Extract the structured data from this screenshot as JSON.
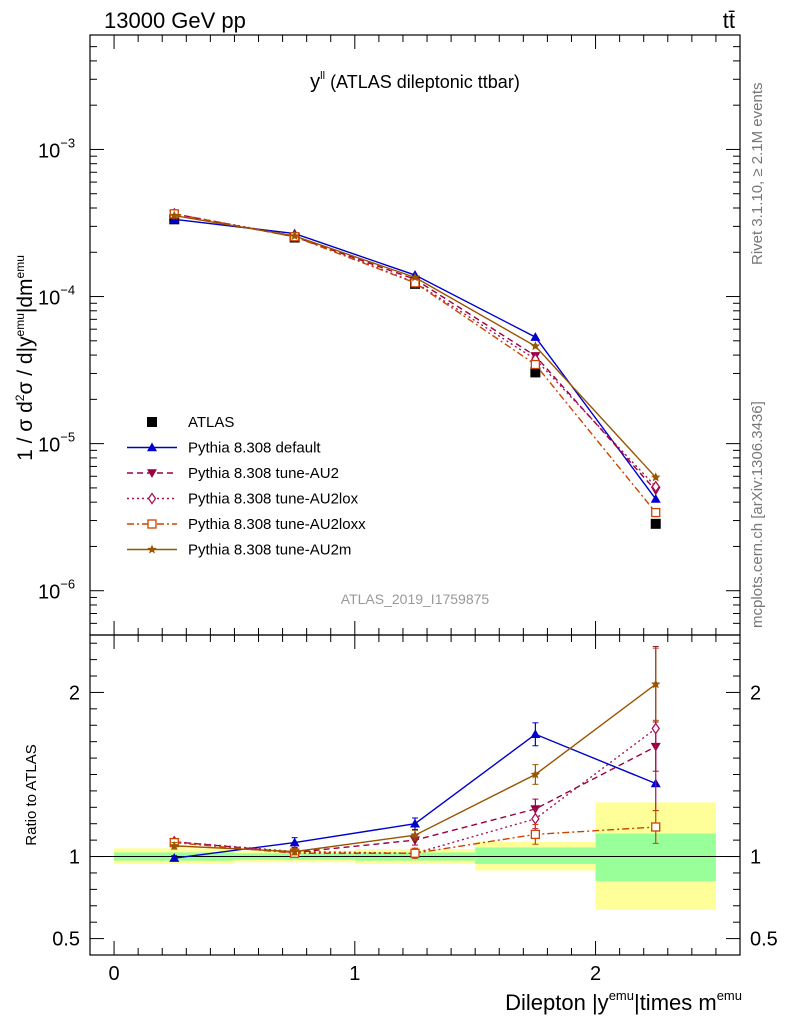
{
  "header": {
    "energy_label": "13000 GeV pp",
    "process_label": "tt̄",
    "side_label_top": "Rivet 3.1.10, ≥ 2.1M events",
    "side_label_bottom": "mcplots.cern.ch [arXiv:1306.3436]"
  },
  "chart_data": [
    {
      "type": "line",
      "panel": "main",
      "title": "y^ll (ATLAS dileptonic ttbar)",
      "title_main": "y",
      "title_sup": "ll",
      "title_rest": " (ATLAS dileptonic ttbar)",
      "ylabel": "1 / σ d²σ / d|y^emu|dm^emu",
      "watermark": "ATLAS_2019_I1759875",
      "yscale": "log",
      "ylim": [
        5e-07,
        0.006
      ],
      "xlim": [
        -0.1,
        2.6
      ],
      "y_ticks": [
        {
          "value": 1e-06,
          "label": "10",
          "exp": "−6"
        },
        {
          "value": 1e-05,
          "label": "10",
          "exp": "−5"
        },
        {
          "value": 0.0001,
          "label": "10",
          "exp": "−4"
        },
        {
          "value": 0.001,
          "label": "10",
          "exp": "−3"
        }
      ],
      "legend_position": "lower-left",
      "x": [
        0.25,
        0.75,
        1.25,
        1.75,
        2.25
      ],
      "series": [
        {
          "name": "ATLAS",
          "style": "data",
          "color": "#000000",
          "marker": "square-filled",
          "values": [
            0.000335,
            0.000252,
            0.000122,
            3.05e-05,
            2.85e-06
          ]
        },
        {
          "name": "Pythia 8.308 default",
          "style": "solid",
          "color": "#0000cc",
          "marker": "triangle-up",
          "values": [
            0.000335,
            0.000268,
            0.00014,
            5.3e-05,
            4.2e-06
          ]
        },
        {
          "name": "Pythia 8.308 tune-AU2",
          "style": "dashed",
          "color": "#990044",
          "marker": "triangle-down",
          "values": [
            0.000365,
            0.000255,
            0.000131,
            3.95e-05,
            4.8e-06
          ]
        },
        {
          "name": "Pythia 8.308 tune-AU2lox",
          "style": "dotted",
          "color": "#aa1155",
          "marker": "diamond-open",
          "values": [
            0.000365,
            0.000258,
            0.000125,
            3.75e-05,
            5.1e-06
          ]
        },
        {
          "name": "Pythia 8.308 tune-AU2loxx",
          "style": "dashdot",
          "color": "#cc4400",
          "marker": "square-open",
          "values": [
            0.000365,
            0.000255,
            0.000124,
            3.45e-05,
            3.4e-06
          ]
        },
        {
          "name": "Pythia 8.308 tune-AU2m",
          "style": "solid",
          "color": "#995500",
          "marker": "star",
          "values": [
            0.000355,
            0.000258,
            0.000135,
            4.6e-05,
            5.9e-06
          ]
        }
      ]
    },
    {
      "type": "line",
      "panel": "ratio",
      "ylabel": "Ratio to ATLAS",
      "xlabel": "Dilepton |y^emu|times m^emu",
      "xlabel_parts": [
        "Dilepton |y",
        "emu",
        "|times m",
        "emu"
      ],
      "ylim": [
        0.4,
        2.35
      ],
      "xlim": [
        -0.1,
        2.6
      ],
      "y_ticks": [
        {
          "value": 0.5,
          "label": "0.5"
        },
        {
          "value": 1,
          "label": "1"
        },
        {
          "value": 2,
          "label": "2"
        }
      ],
      "x_ticks": [
        {
          "value": 0,
          "label": "0"
        },
        {
          "value": 1,
          "label": "1"
        },
        {
          "value": 2,
          "label": "2"
        }
      ],
      "bands": [
        {
          "x0": 0.0,
          "x1": 0.5,
          "inner": [
            0.975,
            1.025
          ],
          "outer": [
            0.955,
            1.05
          ]
        },
        {
          "x0": 0.5,
          "x1": 1.0,
          "inner": [
            0.98,
            1.02
          ],
          "outer": [
            0.965,
            1.035
          ]
        },
        {
          "x0": 1.0,
          "x1": 1.5,
          "inner": [
            0.975,
            1.025
          ],
          "outer": [
            0.955,
            1.045
          ]
        },
        {
          "x0": 1.5,
          "x1": 2.0,
          "inner": [
            0.955,
            1.055
          ],
          "outer": [
            0.915,
            1.09
          ]
        },
        {
          "x0": 2.0,
          "x1": 2.5,
          "inner": [
            0.85,
            1.14
          ],
          "outer": [
            0.675,
            1.33
          ]
        }
      ],
      "x": [
        0.25,
        0.75,
        1.25,
        1.75,
        2.25
      ],
      "series": [
        {
          "name": "Pythia 8.308 default",
          "style": "solid",
          "color": "#0000cc",
          "marker": "triangle-up",
          "values": [
            0.99,
            1.085,
            1.2,
            1.745,
            1.445
          ],
          "errors": [
            0.015,
            0.03,
            0.035,
            0.07,
            0.0
          ]
        },
        {
          "name": "Pythia 8.308 tune-AU2",
          "style": "dashed",
          "color": "#990044",
          "marker": "triangle-down",
          "values": [
            1.09,
            1.025,
            1.1,
            1.29,
            1.67
          ],
          "errors": [
            0.02,
            0.02,
            0.03,
            0.06,
            0.15
          ]
        },
        {
          "name": "Pythia 8.308 tune-AU2lox",
          "style": "dotted",
          "color": "#aa1155",
          "marker": "diamond-open",
          "values": [
            1.09,
            1.03,
            1.02,
            1.23,
            1.78
          ],
          "errors": [
            0.02,
            0.02,
            0.03,
            0.06,
            0.5
          ]
        },
        {
          "name": "Pythia 8.308 tune-AU2loxx",
          "style": "dashdot",
          "color": "#cc4400",
          "marker": "square-open",
          "values": [
            1.085,
            1.02,
            1.02,
            1.135,
            1.18
          ],
          "errors": [
            0.02,
            0.02,
            0.03,
            0.06,
            0.1
          ]
        },
        {
          "name": "Pythia 8.308 tune-AU2m",
          "style": "solid",
          "color": "#995500",
          "marker": "star",
          "values": [
            1.065,
            1.03,
            1.13,
            1.5,
            2.05
          ],
          "errors": [
            0.02,
            0.02,
            0.03,
            0.06,
            0.22
          ]
        }
      ]
    }
  ]
}
